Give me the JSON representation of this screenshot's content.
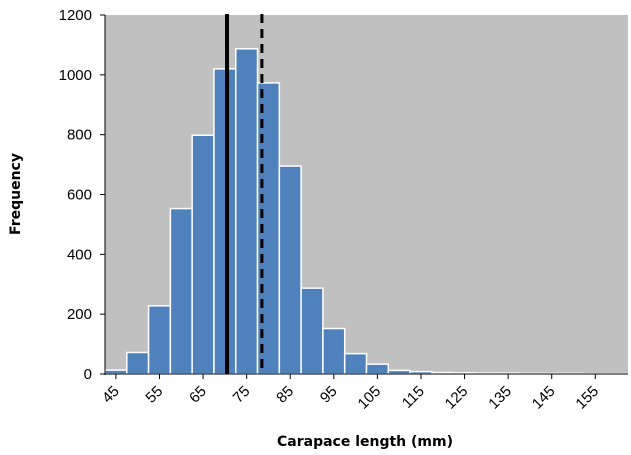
{
  "chart_data": {
    "type": "bar",
    "title": "",
    "xlabel": "Carapace length (mm)",
    "ylabel": "Frequency",
    "ylim": [
      0,
      1200
    ],
    "y_ticks": [
      0,
      200,
      400,
      600,
      800,
      1000,
      1200
    ],
    "x_tick_labels": [
      "45",
      "55",
      "65",
      "75",
      "85",
      "95",
      "105",
      "115",
      "125",
      "135",
      "145",
      "155"
    ],
    "bin_start": 42.5,
    "bin_width": 5,
    "values": [
      13,
      72,
      228,
      553,
      798,
      1020,
      1087,
      973,
      695,
      287,
      152,
      68,
      33,
      12,
      8,
      5,
      4,
      3,
      3,
      2,
      2,
      2,
      1,
      1
    ],
    "vertical_lines": [
      {
        "x": 70.5,
        "style": "solid"
      },
      {
        "x": 78.5,
        "style": "dashed"
      }
    ],
    "grid": false,
    "colors": {
      "plot_bg": "#c0c0c0",
      "bar": "#4f81bd",
      "bar_edge": "#ffffff",
      "line": "#000000"
    }
  }
}
